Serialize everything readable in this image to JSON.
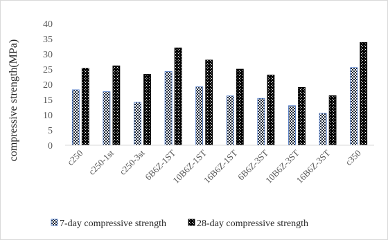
{
  "chart_data": {
    "type": "bar",
    "ylabel": "compressive strength(MPa)",
    "xlabel": "",
    "title": "",
    "ylim": [
      0,
      40
    ],
    "yticks": [
      0,
      5,
      10,
      15,
      20,
      25,
      30,
      35,
      40
    ],
    "grid": false,
    "legend_position": "bottom",
    "categories": [
      "c250",
      "c250-1st",
      "c250-3st",
      "6B6Z-1ST",
      "10B6Z-1ST",
      "16B6Z-1ST",
      "6B6Z-3ST",
      "10B6Z-3ST",
      "16B6Z-3ST",
      "c350"
    ],
    "series": [
      {
        "name": "7-day compressive strength",
        "color": "#4472c4",
        "pattern": "checkerboard",
        "values": [
          18.2,
          17.6,
          14.1,
          24.2,
          19.2,
          16.2,
          15.4,
          13.0,
          10.5,
          25.5
        ]
      },
      {
        "name": "28-day compressive strength",
        "color": "#000000",
        "pattern": "dots",
        "values": [
          25.3,
          26.1,
          23.3,
          32.0,
          28.0,
          25.0,
          23.1,
          19.0,
          16.3,
          33.8
        ]
      }
    ]
  }
}
